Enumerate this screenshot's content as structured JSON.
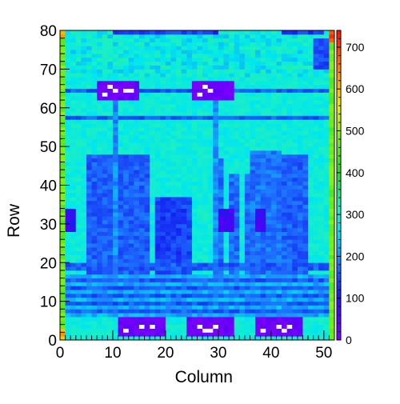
{
  "chart_data": {
    "type": "heatmap",
    "title": "",
    "xlabel": "Column",
    "ylabel": "Row",
    "xlim": [
      0,
      52
    ],
    "ylim": [
      0,
      80
    ],
    "zlim": [
      0,
      740
    ],
    "xticks": [
      0,
      10,
      20,
      30,
      40,
      50
    ],
    "yticks": [
      0,
      10,
      20,
      30,
      40,
      50,
      60,
      70,
      80
    ],
    "zticks": [
      0,
      100,
      200,
      300,
      400,
      500,
      600,
      700
    ],
    "colorbar": "right",
    "palette": "rainbow (violet-blue-cyan-green-yellow-red)",
    "x_bin_width": 1,
    "y_bin_width": 1,
    "features": {
      "background_value": 285,
      "edge_column_value": 470,
      "row_stripe_value": 160,
      "low_value_tiles": [
        {
          "x": [
            7,
            15
          ],
          "y": [
            62,
            67
          ],
          "value": 10
        },
        {
          "x": [
            25,
            33
          ],
          "y": [
            62,
            67
          ],
          "value": 10
        },
        {
          "x": [
            11,
            20
          ],
          "y": [
            1,
            6
          ],
          "value": 10
        },
        {
          "x": [
            24,
            33
          ],
          "y": [
            1,
            6
          ],
          "value": 10
        },
        {
          "x": [
            37,
            46
          ],
          "y": [
            1,
            6
          ],
          "value": 10
        }
      ],
      "medium_blocks": [
        {
          "x": [
            5,
            17
          ],
          "y": [
            17,
            48
          ],
          "value": 165
        },
        {
          "x": [
            18,
            25
          ],
          "y": [
            17,
            37
          ],
          "value": 140
        },
        {
          "x": [
            29,
            31
          ],
          "y": [
            17,
            47
          ],
          "value": 175
        },
        {
          "x": [
            32,
            41
          ],
          "y": [
            17,
            43
          ],
          "value": 175
        },
        {
          "x": [
            41,
            47
          ],
          "y": [
            17,
            48
          ],
          "value": 165
        },
        {
          "x": [
            36,
            42
          ],
          "y": [
            17,
            49
          ],
          "value": 180
        }
      ],
      "empty_bins_value": 0
    }
  }
}
